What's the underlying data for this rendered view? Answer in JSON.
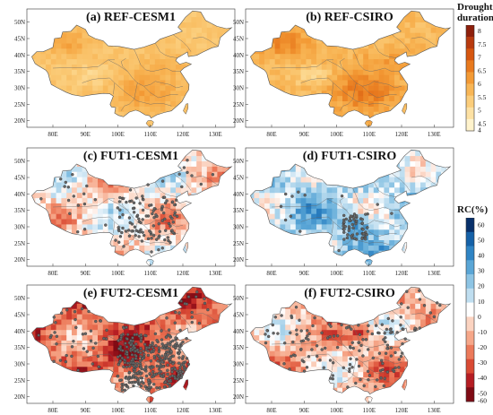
{
  "figure": {
    "panels": [
      {
        "label": "(a) REF-CESM1",
        "scheme": "ref",
        "intensity": 0.55,
        "dots": 0
      },
      {
        "label": "(b) REF-CSIRO",
        "scheme": "ref",
        "intensity": 0.8,
        "dots": 0
      },
      {
        "label": "(c) FUT1-CESM1",
        "scheme": "rc",
        "bias": -0.15,
        "dots": 140
      },
      {
        "label": "(d) FUT1-CSIRO",
        "scheme": "rc",
        "bias": 0.3,
        "dots": 70
      },
      {
        "label": "(e) FUT2-CESM1",
        "scheme": "rc",
        "bias": -0.75,
        "dots": 420
      },
      {
        "label": "(f) FUT2-CSIRO",
        "scheme": "rc",
        "bias": -0.35,
        "dots": 160
      }
    ],
    "lat_ticks": [
      "20N",
      "25N",
      "30N",
      "35N",
      "40N",
      "45N",
      "50N"
    ],
    "lon_ticks": [
      "80E",
      "90E",
      "100E",
      "110E",
      "120E",
      "130E"
    ]
  },
  "colorbar_ref": {
    "title": "Drought duration",
    "ticks": [
      "8",
      "7.5",
      "7",
      "6.5",
      "6",
      "5.5",
      "5",
      "4.5",
      "4"
    ],
    "colors": [
      "#8e1f0b",
      "#b83a0e",
      "#d6560f",
      "#e87a1e",
      "#f39a35",
      "#f8b656",
      "#fbcd7b",
      "#fde1a3",
      "#fff3cc"
    ]
  },
  "colorbar_rc": {
    "title": "RC(%)",
    "ticks": [
      "60",
      "50",
      "40",
      "30",
      "20",
      "10",
      "0",
      "-10",
      "-20",
      "-30",
      "-40",
      "-50",
      "-60"
    ],
    "colors": [
      "#08306b",
      "#1561a8",
      "#2f84c4",
      "#5aa6d6",
      "#8dc4e4",
      "#bfdef0",
      "#ffffff",
      "#fbd3c0",
      "#f6a789",
      "#ec7a5a",
      "#d94a34",
      "#b51d23",
      "#7f0a14"
    ]
  }
}
